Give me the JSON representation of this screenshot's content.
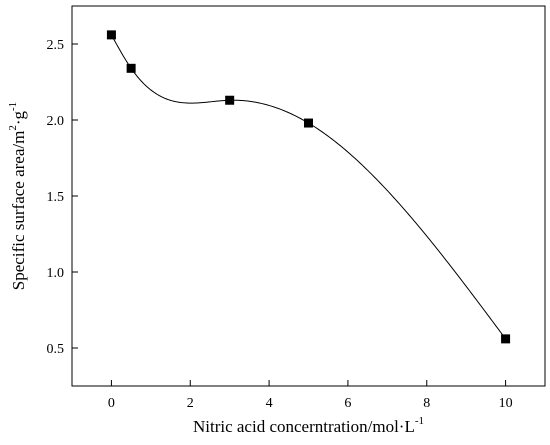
{
  "chart_data": {
    "type": "scatter",
    "title": "",
    "xlabel": "Nitric acid concerntration/mol·L",
    "xlabel_sup": "-1",
    "ylabel_parts": [
      "Specific surface area/m",
      "2",
      "·g",
      "-1"
    ],
    "xlim": [
      -1,
      11
    ],
    "ylim": [
      0.25,
      2.75
    ],
    "xticks": [
      0,
      2,
      4,
      6,
      8,
      10
    ],
    "xtick_labels": [
      "0",
      "2",
      "4",
      "6",
      "8",
      "10"
    ],
    "yticks": [
      0.5,
      1.0,
      1.5,
      2.0,
      2.5
    ],
    "ytick_labels": [
      "0.5",
      "1.0",
      "1.5",
      "2.0",
      "2.5"
    ],
    "grid": false,
    "series": [
      {
        "x": [
          0,
          0.5,
          3,
          5,
          10
        ],
        "y": [
          2.56,
          2.34,
          2.13,
          1.98,
          0.56
        ],
        "marker": "square",
        "fit_curve": true
      }
    ],
    "colors": {
      "axis": "#000000",
      "marker": "#000000",
      "curve": "#000000"
    }
  }
}
